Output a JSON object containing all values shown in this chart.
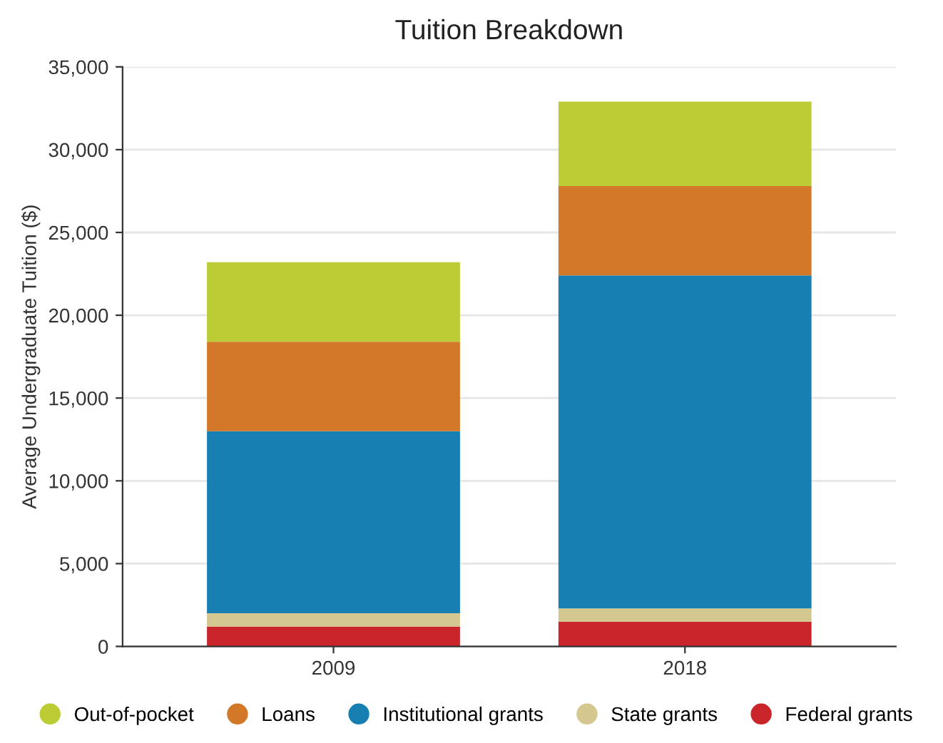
{
  "chart_data": {
    "type": "bar",
    "title": "Tuition Breakdown",
    "ylabel": "Average Undergraduate Tuition ($)",
    "categories": [
      "2009",
      "2018"
    ],
    "stacked": true,
    "series": [
      {
        "name": "Federal grants",
        "color": "#c9252b",
        "values": [
          1200,
          1500
        ]
      },
      {
        "name": "State grants",
        "color": "#d4c790",
        "values": [
          800,
          800
        ]
      },
      {
        "name": "Institutional grants",
        "color": "#177fb1",
        "values": [
          11000,
          20100
        ]
      },
      {
        "name": "Loans",
        "color": "#d27828",
        "values": [
          5400,
          5400
        ]
      },
      {
        "name": "Out-of-pocket",
        "color": "#bccc35",
        "values": [
          4800,
          5100
        ]
      }
    ],
    "ylim": [
      0,
      35000
    ],
    "yticks": [
      {
        "value": 0,
        "label": "0"
      },
      {
        "value": 5000,
        "label": "5,000"
      },
      {
        "value": 10000,
        "label": "10,000"
      },
      {
        "value": 15000,
        "label": "15,000"
      },
      {
        "value": 20000,
        "label": "20,000"
      },
      {
        "value": 25000,
        "label": "25,000"
      },
      {
        "value": 30000,
        "label": "30,000"
      },
      {
        "value": 35000,
        "label": "35,000"
      }
    ],
    "grid": "y",
    "legend": "bottom"
  }
}
